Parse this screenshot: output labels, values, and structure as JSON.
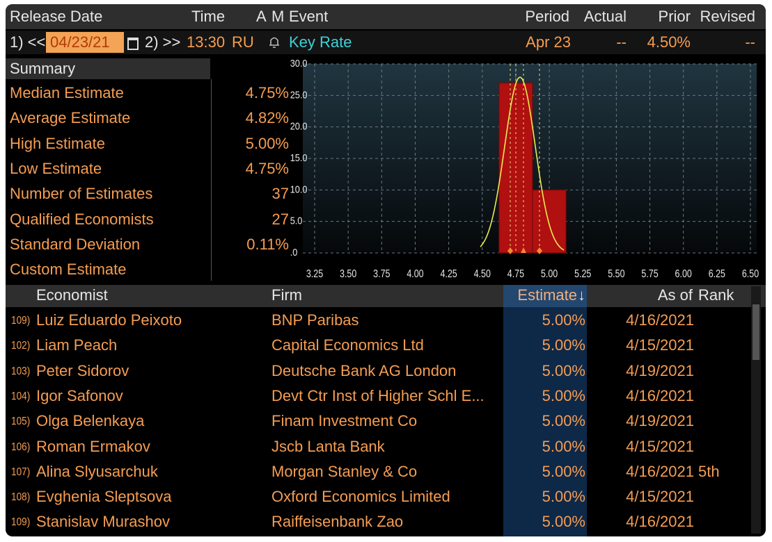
{
  "header": {
    "columns": [
      "Release Date",
      "Time",
      "A",
      "M",
      "Event",
      "Period",
      "Actual",
      "Prior",
      "Revised"
    ],
    "row": {
      "nav_prev": "1) <<",
      "date": "04/23/21",
      "nav_next": "2) >>",
      "time": "13:30",
      "country": "RU",
      "event": "Key Rate",
      "period": "Apr 23",
      "actual": "--",
      "prior": "4.50%",
      "revised": "--"
    }
  },
  "summary": {
    "title": "Summary",
    "rows": [
      [
        "Median Estimate",
        "4.75%"
      ],
      [
        "Average Estimate",
        "4.82%"
      ],
      [
        "High Estimate",
        "5.00%"
      ],
      [
        "Low Estimate",
        "4.75%"
      ],
      [
        "Number of Estimates",
        "37"
      ],
      [
        "Qualified Economists",
        "27"
      ],
      [
        "Standard Deviation",
        "0.11%"
      ],
      [
        "Custom Estimate"
      ]
    ]
  },
  "chart_data": {
    "type": "histogram",
    "bins": [
      4.625,
      4.875,
      5.125
    ],
    "counts": [
      27,
      10
    ],
    "color": "#b01010",
    "xlim": [
      3.25,
      6.5
    ],
    "xticks": [
      3.25,
      {
        "value": 3.5,
        "label": "3.50"
      },
      3.75,
      {
        "value": 4,
        "label": "4.00"
      },
      4.25,
      {
        "value": 4.5,
        "label": "4.50"
      },
      4.75,
      {
        "value": 5,
        "label": "5.00"
      },
      5.25,
      {
        "value": 5.5,
        "label": "5.50"
      },
      5.75,
      {
        "value": 6,
        "label": "6.00"
      },
      6.25,
      {
        "value": 6.5,
        "label": "6.50"
      }
    ],
    "ylim": [
      0,
      30
    ],
    "yticks": [
      {
        "value": 0,
        "label": ".0"
      },
      {
        "value": 5,
        "label": "5.0"
      },
      {
        "value": 10,
        "label": "10.0"
      },
      {
        "value": 15,
        "label": "15.0"
      },
      {
        "value": 20,
        "label": "20.0"
      },
      {
        "value": 25,
        "label": "25.0"
      },
      {
        "value": 30,
        "label": "30.0"
      }
    ],
    "grid": true
  },
  "table": {
    "columns": [
      "Economist",
      "Firm",
      "Estimate",
      "As of",
      "Rank"
    ],
    "rows": [
      {
        "no": "109)",
        "economist": "Luiz Eduardo Peixoto",
        "firm": "BNP Paribas",
        "estimate": "5.00%",
        "as_of": "4/16/2021"
      },
      {
        "no": "102)",
        "economist": "Liam Peach",
        "firm": "Capital Economics Ltd",
        "estimate": "5.00%",
        "as_of": "4/15/2021"
      },
      {
        "no": "103)",
        "economist": "Peter Sidorov",
        "firm": "Deutsche Bank AG London",
        "estimate": "5.00%",
        "as_of": "4/19/2021"
      },
      {
        "no": "104)",
        "economist": "Igor Safonov",
        "firm": "Devt Ctr Inst of Higher Schl E...",
        "estimate": "5.00%",
        "as_of": "4/16/2021"
      },
      {
        "no": "105)",
        "economist": "Olga Belenkaya",
        "firm": "Finam Investment Co",
        "estimate": "5.00%",
        "as_of": "4/19/2021"
      },
      {
        "no": "106)",
        "economist": "Roman Ermakov",
        "firm": "Jscb Lanta Bank",
        "estimate": "5.00%",
        "as_of": "4/15/2021"
      },
      {
        "no": "107)",
        "economist": "Alina Slyusarchuk",
        "firm": "Morgan Stanley & Co",
        "estimate": "5.00%",
        "as_of": "4/16/2021",
        "rank": "5th"
      },
      {
        "no": "108)",
        "economist": "Evghenia Sleptsova",
        "firm": "Oxford Economics Limited",
        "estimate": "5.00%",
        "as_of": "4/15/2021"
      },
      {
        "no": "109)",
        "economist": "Stanislav Murashov",
        "firm": "Raiffeisenbank Zao",
        "estimate": "5.00%",
        "as_of": "4/16/2021"
      }
    ]
  }
}
